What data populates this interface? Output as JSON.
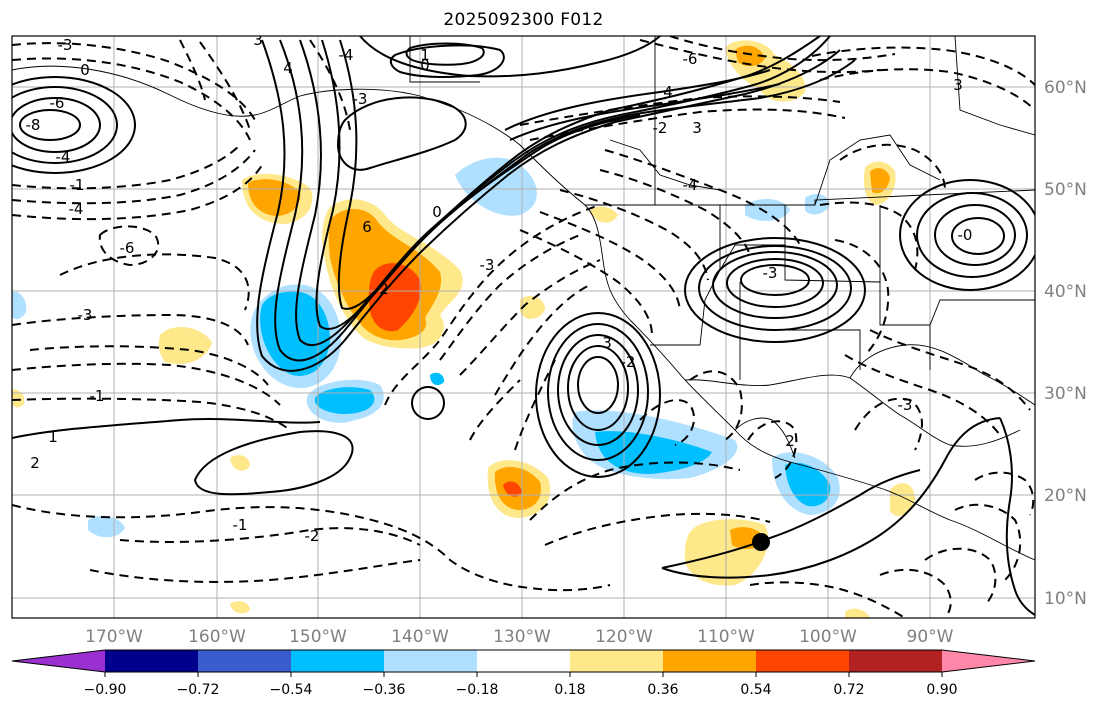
{
  "title": "2025092300 F012",
  "colors": {
    "frame": "#000000",
    "grid": "#b0b0b0",
    "tick_label": "#808080",
    "storm_marker": "#000000"
  },
  "longitude_labels": [
    "170°W",
    "160°W",
    "150°W",
    "140°W",
    "130°W",
    "120°W",
    "110°W",
    "100°W",
    "90°W"
  ],
  "latitude_labels": [
    "60°N",
    "50°N",
    "40°N",
    "30°N",
    "20°N",
    "10°N"
  ],
  "colorbar": {
    "colors": [
      "#9b30d0",
      "#00008c",
      "#3a5ccc",
      "#00bfff",
      "#b0e0ff",
      "#ffffff",
      "#ffe88a",
      "#ffa500",
      "#ff4500",
      "#b22222",
      "#ff88aa"
    ],
    "tick_labels": [
      "−0.90",
      "−0.72",
      "−0.54",
      "−0.36",
      "−0.18",
      "0.18",
      "0.36",
      "0.54",
      "0.72",
      "0.90"
    ]
  },
  "contour_labels": [
    {
      "text": "-3"
    },
    {
      "text": "0"
    },
    {
      "text": "-6"
    },
    {
      "text": "-8"
    },
    {
      "text": "-4"
    },
    {
      "text": "-1"
    },
    {
      "text": "-4"
    },
    {
      "text": "-6"
    },
    {
      "text": "-3"
    },
    {
      "text": "-1"
    },
    {
      "text": "1"
    },
    {
      "text": "2"
    },
    {
      "text": "3"
    },
    {
      "text": "4"
    },
    {
      "text": "6"
    },
    {
      "text": "2"
    },
    {
      "text": "-3"
    },
    {
      "text": "-4"
    },
    {
      "text": "0"
    },
    {
      "text": "1"
    },
    {
      "text": "-6"
    },
    {
      "text": "4"
    },
    {
      "text": "3"
    },
    {
      "text": "-2"
    },
    {
      "text": "-3"
    },
    {
      "text": "-4"
    },
    {
      "text": "3"
    },
    {
      "text": "-2"
    },
    {
      "text": "-3"
    },
    {
      "text": "-0"
    },
    {
      "text": "-1"
    },
    {
      "text": "-2"
    },
    {
      "text": "0"
    },
    {
      "text": "3"
    },
    {
      "text": "2"
    },
    {
      "text": "-3"
    }
  ]
}
